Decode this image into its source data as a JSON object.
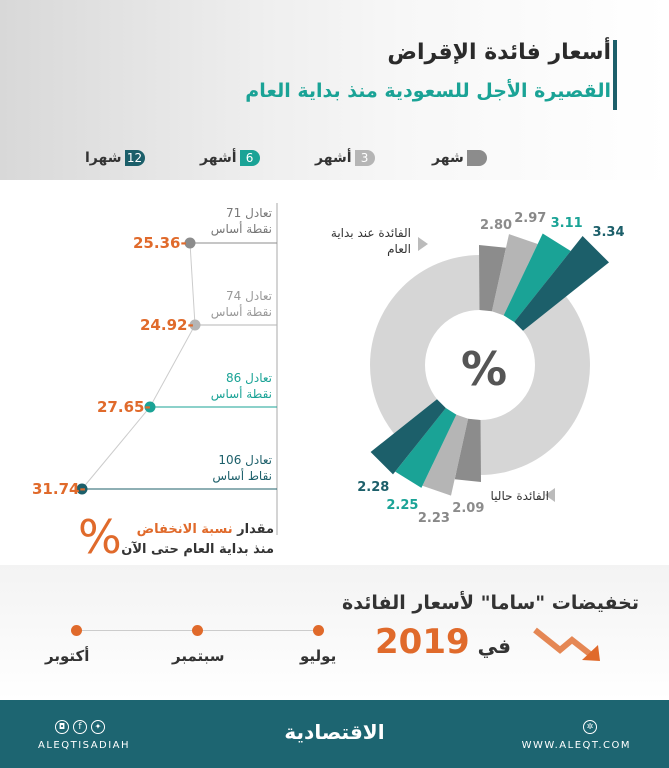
{
  "header": {
    "title": "أسعار فائدة الإقراض",
    "subtitle": "القصيرة الأجل للسعودية منذ بداية العام"
  },
  "chart_data": {
    "type": "radial-bar",
    "series": [
      {
        "name": "شهر",
        "color": "#8c8c8c",
        "start": 2.8,
        "now": 2.09,
        "change_pct": -25.36,
        "change_label": "تعادل 71",
        "unit_label": "نقطة أساس"
      },
      {
        "name": "3 أشهر",
        "color": "#b5b5b5",
        "start": 2.97,
        "now": 2.23,
        "change_pct": -24.92,
        "change_label": "تعادل 74",
        "unit_label": "نقطة أساس"
      },
      {
        "name": "6 أشهر",
        "color": "#1aa396",
        "start": 3.11,
        "now": 2.25,
        "change_pct": -27.65,
        "change_label": "تعادل 86",
        "unit_label": "نقطة أساس"
      },
      {
        "name": "12 شهرا",
        "color": "#1c5f6a",
        "start": 3.34,
        "now": 2.28,
        "change_pct": -31.74,
        "change_label": "تعادل 106",
        "unit_label": "نقاط أساس"
      }
    ],
    "labels": {
      "start": "الفائدة عند بداية العام",
      "now": "الفائدة حاليا",
      "center": "%"
    },
    "start_labels": [
      "2.80",
      "2.97",
      "3.11",
      "3.34"
    ],
    "now_labels": [
      "2.09",
      "2.23",
      "2.25",
      "2.28"
    ],
    "change_labels": [
      "25.36-",
      "24.92-",
      "27.65-",
      "31.74-"
    ]
  },
  "legend": [
    {
      "num": "",
      "text": "شهر"
    },
    {
      "num": "3",
      "text": "أشهر"
    },
    {
      "num": "6",
      "text": "أشهر"
    },
    {
      "num": "12",
      "text": "شهرا"
    }
  ],
  "decline_note": {
    "prefix": "مقدار",
    "highlight": "نسبة الانخفاض",
    "line2": "منذ بداية العام حتى الآن",
    "symbol": "%"
  },
  "cuts": {
    "title": "تخفيضات \"ساما\" لأسعار الفائدة",
    "in": "في",
    "year": "2019",
    "months": [
      "يوليو",
      "سبتمبر",
      "أكتوبر"
    ]
  },
  "footer": {
    "social": "ALEQTISADIAH",
    "logo": "الاقتصادية",
    "site": "WWW.ALEQT.COM"
  }
}
